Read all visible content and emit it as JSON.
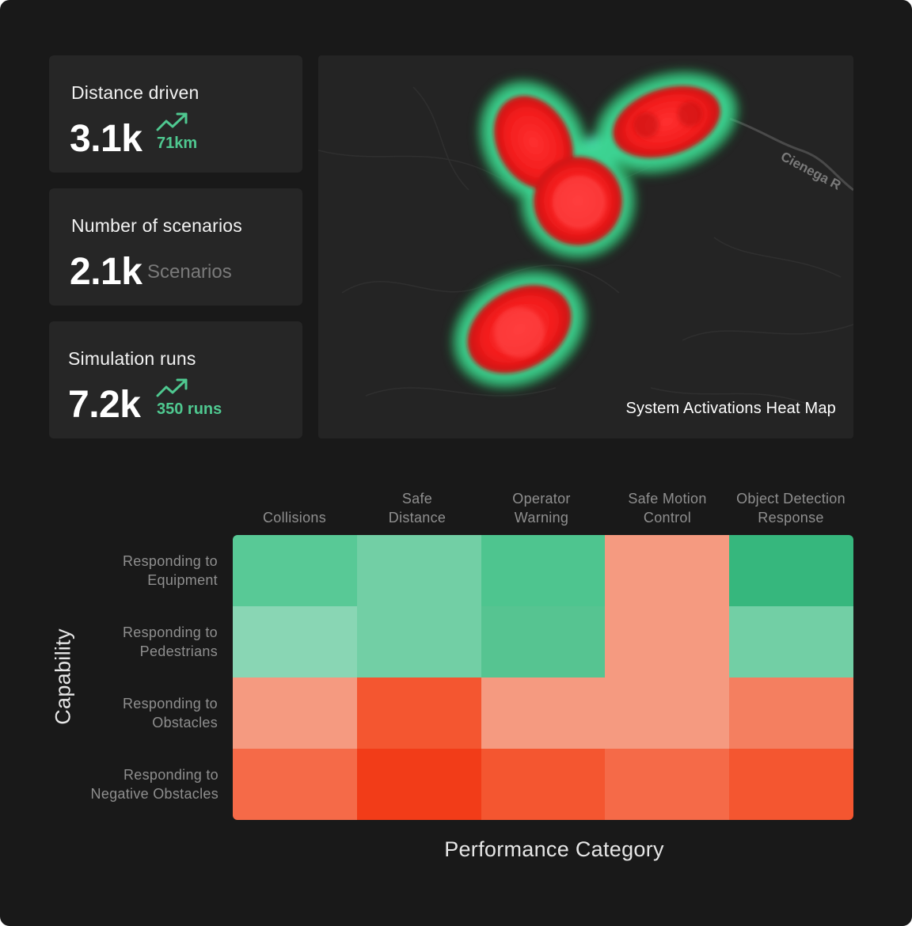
{
  "stats": [
    {
      "label": "Distance driven",
      "value": "3.1k",
      "sub": "71km",
      "trend": "up",
      "trend_icon": "trending-up-icon"
    },
    {
      "label": "Number of scenarios",
      "value": "2.1k",
      "sub": "Scenarios",
      "trend": "none"
    },
    {
      "label": "Simulation runs",
      "value": "7.2k",
      "sub": "350 runs",
      "trend": "up",
      "trend_icon": "trending-up-icon"
    }
  ],
  "map": {
    "caption": "System Activations Heat Map",
    "road_label": "Cienega R"
  },
  "heatmap": {
    "x_title": "Performance Category",
    "y_title": "Capability",
    "columns": [
      [
        "Collisions"
      ],
      [
        "Safe",
        "Distance"
      ],
      [
        "Operator",
        "Warning"
      ],
      [
        "Safe Motion",
        "Control"
      ],
      [
        "Object Detection",
        "Response"
      ]
    ],
    "rows": [
      [
        "Responding to",
        "Equipment"
      ],
      [
        "Responding to",
        "Pedestrians"
      ],
      [
        "Responding to",
        "Obstacles"
      ],
      [
        "Responding to",
        "Negative Obstacles"
      ]
    ],
    "cell_colors": [
      [
        "#58c996",
        "#72cfa5",
        "#4ec58f",
        "#f59a80",
        "#36b77d"
      ],
      [
        "#89d6b4",
        "#72cfa5",
        "#56c491",
        "#f59a80",
        "#72cfa5"
      ],
      [
        "#f59a80",
        "#f45630",
        "#f59a80",
        "#f59a80",
        "#f47f60"
      ],
      [
        "#f56a48",
        "#f23c18",
        "#f45630",
        "#f56a48",
        "#f45630"
      ]
    ]
  },
  "colors": {
    "background": "#191919",
    "card": "#262626",
    "accent_green": "#4fc890",
    "heat_red": "#ff2a2a",
    "heat_glow": "#5ff2e0"
  }
}
